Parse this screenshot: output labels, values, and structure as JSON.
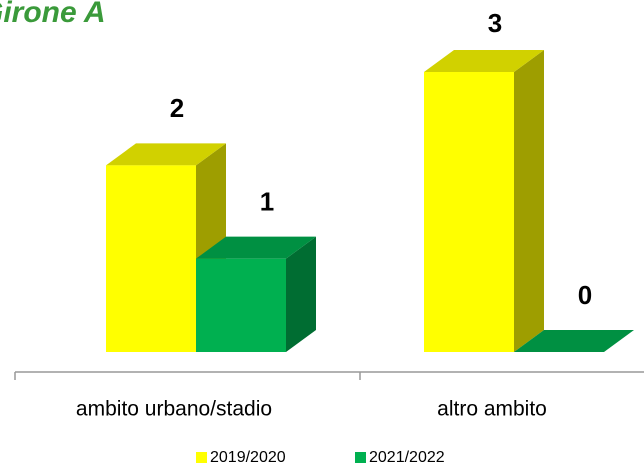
{
  "chart_data": {
    "type": "bar3d",
    "title": "Girone A",
    "categories": [
      "ambito urbano/stadio",
      "altro ambito"
    ],
    "series": [
      {
        "name": "2019/2020",
        "color": "#ffff00",
        "values": [
          2,
          3
        ]
      },
      {
        "name": "2021/2022",
        "color": "#00b050",
        "values": [
          1,
          0
        ]
      }
    ],
    "ylim": [
      0,
      3
    ]
  }
}
